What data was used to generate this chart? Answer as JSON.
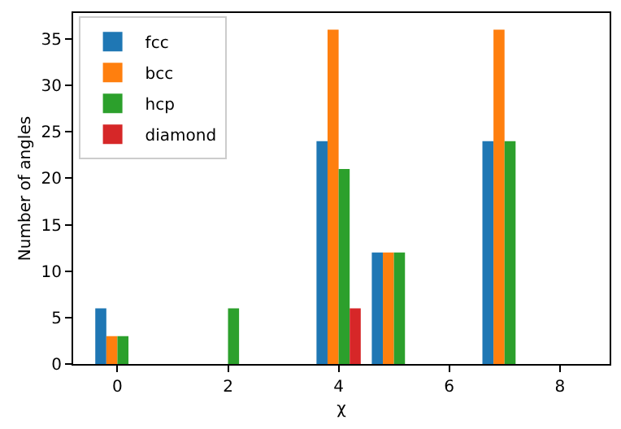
{
  "chart_data": {
    "type": "bar",
    "xlabel": "χ",
    "ylabel": "Number of angles",
    "x": [
      0,
      2,
      4,
      5,
      7
    ],
    "series": [
      {
        "name": "fcc",
        "color": "#1f77b4",
        "values": [
          6,
          0,
          24,
          12,
          24
        ]
      },
      {
        "name": "bcc",
        "color": "#ff7f0e",
        "values": [
          3,
          0,
          36,
          12,
          36
        ]
      },
      {
        "name": "hcp",
        "color": "#2ca02c",
        "values": [
          3,
          6,
          21,
          12,
          24
        ]
      },
      {
        "name": "diamond",
        "color": "#d62728",
        "values": [
          0,
          0,
          6,
          0,
          0
        ]
      }
    ],
    "xlim": [
      -0.8,
      8.9
    ],
    "xticks": [
      0,
      2,
      4,
      6,
      8
    ],
    "ylim": [
      0,
      37.8
    ],
    "yticks": [
      0,
      5,
      10,
      15,
      20,
      25,
      30,
      35
    ],
    "legend": "top left"
  }
}
